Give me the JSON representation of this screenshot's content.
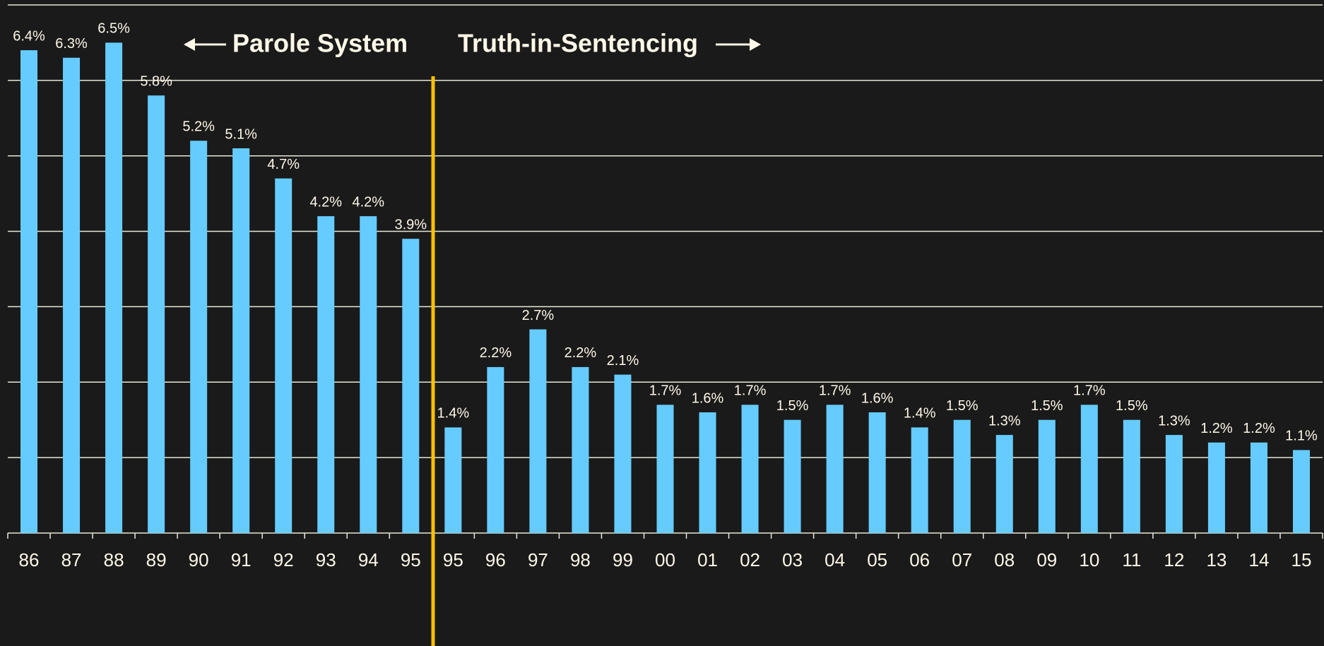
{
  "chart_data": {
    "type": "bar",
    "annotations": [
      "Parole System",
      "Truth-in-Sentencing"
    ],
    "categories": [
      "86",
      "87",
      "88",
      "89",
      "90",
      "91",
      "92",
      "93",
      "94",
      "95",
      "95",
      "96",
      "97",
      "98",
      "99",
      "00",
      "01",
      "02",
      "03",
      "04",
      "05",
      "06",
      "07",
      "08",
      "09",
      "10",
      "11",
      "12",
      "13",
      "14",
      "15"
    ],
    "values": [
      6.4,
      6.3,
      6.5,
      5.8,
      5.2,
      5.1,
      4.7,
      4.2,
      4.2,
      3.9,
      1.4,
      2.2,
      2.7,
      2.2,
      2.1,
      1.7,
      1.6,
      1.7,
      1.5,
      1.7,
      1.6,
      1.4,
      1.5,
      1.3,
      1.5,
      1.7,
      1.5,
      1.3,
      1.2,
      1.2,
      1.1
    ],
    "value_labels": [
      "6.4%",
      "6.3%",
      "6.5%",
      "5.8%",
      "5.2%",
      "5.1%",
      "4.7%",
      "4.2%",
      "4.2%",
      "3.9%",
      "1.4%",
      "2.2%",
      "2.7%",
      "2.2%",
      "2.1%",
      "1.7%",
      "1.6%",
      "1.7%",
      "1.5%",
      "1.7%",
      "1.6%",
      "1.4%",
      "1.5%",
      "1.3%",
      "1.5%",
      "1.7%",
      "1.5%",
      "1.3%",
      "1.2%",
      "1.2%",
      "1.1%"
    ],
    "color": "#66ccff",
    "ylim": [
      0,
      7
    ],
    "yticks": [
      0,
      1,
      2,
      3,
      4,
      5,
      6,
      7
    ],
    "y_tick_labels": false,
    "grid": true
  }
}
